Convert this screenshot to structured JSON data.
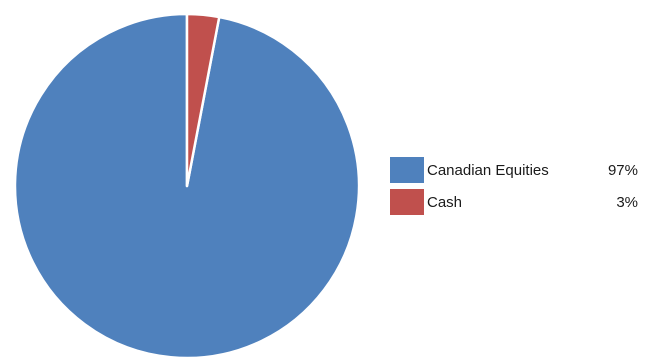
{
  "chart_data": {
    "type": "pie",
    "title": "",
    "categories": [
      "Canadian Equities",
      "Cash"
    ],
    "values": [
      97,
      3
    ],
    "value_labels": [
      "97%",
      "3%"
    ],
    "colors": [
      "#4F81BD",
      "#C0504D"
    ],
    "legend_position": "right"
  }
}
